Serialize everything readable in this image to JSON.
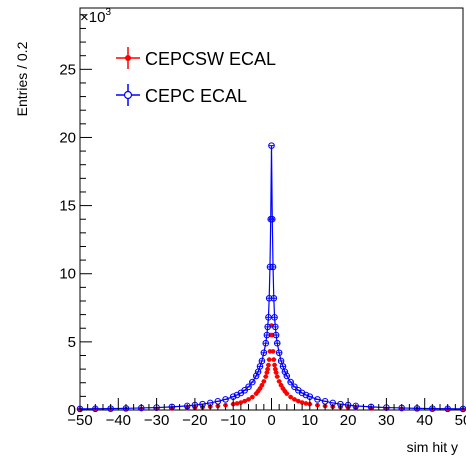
{
  "chart_data": {
    "type": "scatter",
    "title": "",
    "xlabel": "sim hit y",
    "ylabel": "Entries / 0.2",
    "y_multiplier_label": "×10",
    "y_multiplier_exponent": "3",
    "xlim": [
      -50,
      50
    ],
    "ylim": [
      0,
      29500
    ],
    "x_ticks": [
      -50,
      -40,
      -30,
      -20,
      -10,
      0,
      10,
      20,
      30,
      40,
      50
    ],
    "x_tick_labels": [
      "−50",
      "−40",
      "−30",
      "−20",
      "−10",
      "0",
      "10",
      "20",
      "30",
      "40",
      "50"
    ],
    "y_ticks": [
      0,
      5000,
      10000,
      15000,
      20000,
      25000
    ],
    "y_tick_labels": [
      "0",
      "5",
      "10",
      "15",
      "20",
      "25"
    ],
    "grid": false,
    "legend_position": "top-left",
    "series": [
      {
        "name": "CEPCSW ECAL",
        "color": "#ff0000",
        "marker": "filled-circle",
        "line": false,
        "x": [
          -50,
          -46,
          -42,
          -38,
          -34,
          -30,
          -26,
          -22,
          -20,
          -18,
          -16,
          -14,
          -12,
          -10,
          -9,
          -8,
          -7,
          -6,
          -5,
          -4,
          -3.5,
          -3,
          -2.5,
          -2,
          -1.5,
          -1.2,
          -1,
          -0.8,
          -0.6,
          -0.4,
          -0.2,
          0,
          0.2,
          0.4,
          0.6,
          0.8,
          1,
          1.2,
          1.5,
          2,
          2.5,
          3,
          3.5,
          4,
          5,
          6,
          7,
          8,
          9,
          10,
          12,
          14,
          16,
          18,
          20,
          22,
          26,
          30,
          34,
          38,
          42,
          46,
          50
        ],
        "y": [
          40,
          45,
          50,
          60,
          75,
          90,
          110,
          140,
          170,
          200,
          240,
          290,
          350,
          430,
          480,
          550,
          650,
          780,
          950,
          1200,
          1380,
          1580,
          1820,
          2100,
          2450,
          2750,
          3000,
          3300,
          3700,
          4300,
          5500,
          6200,
          5500,
          4300,
          3700,
          3300,
          3000,
          2750,
          2450,
          2100,
          1820,
          1580,
          1380,
          1200,
          950,
          780,
          650,
          550,
          480,
          430,
          350,
          290,
          240,
          200,
          170,
          140,
          110,
          90,
          75,
          60,
          50,
          45,
          40
        ]
      },
      {
        "name": "CEPC ECAL",
        "color": "#0000ff",
        "marker": "open-circle",
        "line": true,
        "x": [
          -50,
          -46,
          -42,
          -38,
          -34,
          -30,
          -26,
          -22,
          -20,
          -18,
          -16,
          -14,
          -12,
          -10,
          -9,
          -8,
          -7,
          -6,
          -5,
          -4,
          -3.5,
          -3,
          -2.5,
          -2,
          -1.5,
          -1.2,
          -1,
          -0.8,
          -0.6,
          -0.4,
          -0.2,
          0,
          0.2,
          0.4,
          0.6,
          0.8,
          1,
          1.2,
          1.5,
          2,
          2.5,
          3,
          3.5,
          4,
          5,
          6,
          7,
          8,
          9,
          10,
          12,
          14,
          16,
          18,
          20,
          22,
          26,
          30,
          34,
          38,
          42,
          46,
          50
        ],
        "y": [
          80,
          90,
          100,
          120,
          150,
          180,
          230,
          300,
          360,
          430,
          520,
          640,
          780,
          980,
          1100,
          1250,
          1450,
          1700,
          2050,
          2500,
          2800,
          3200,
          3600,
          4200,
          4900,
          5500,
          6100,
          6800,
          8200,
          10500,
          14000,
          19400,
          14000,
          10500,
          8200,
          6800,
          6100,
          5500,
          4900,
          4200,
          3600,
          3200,
          2800,
          2500,
          2050,
          1700,
          1450,
          1250,
          1100,
          980,
          780,
          640,
          520,
          430,
          360,
          300,
          230,
          180,
          150,
          120,
          100,
          90,
          80
        ]
      }
    ]
  }
}
